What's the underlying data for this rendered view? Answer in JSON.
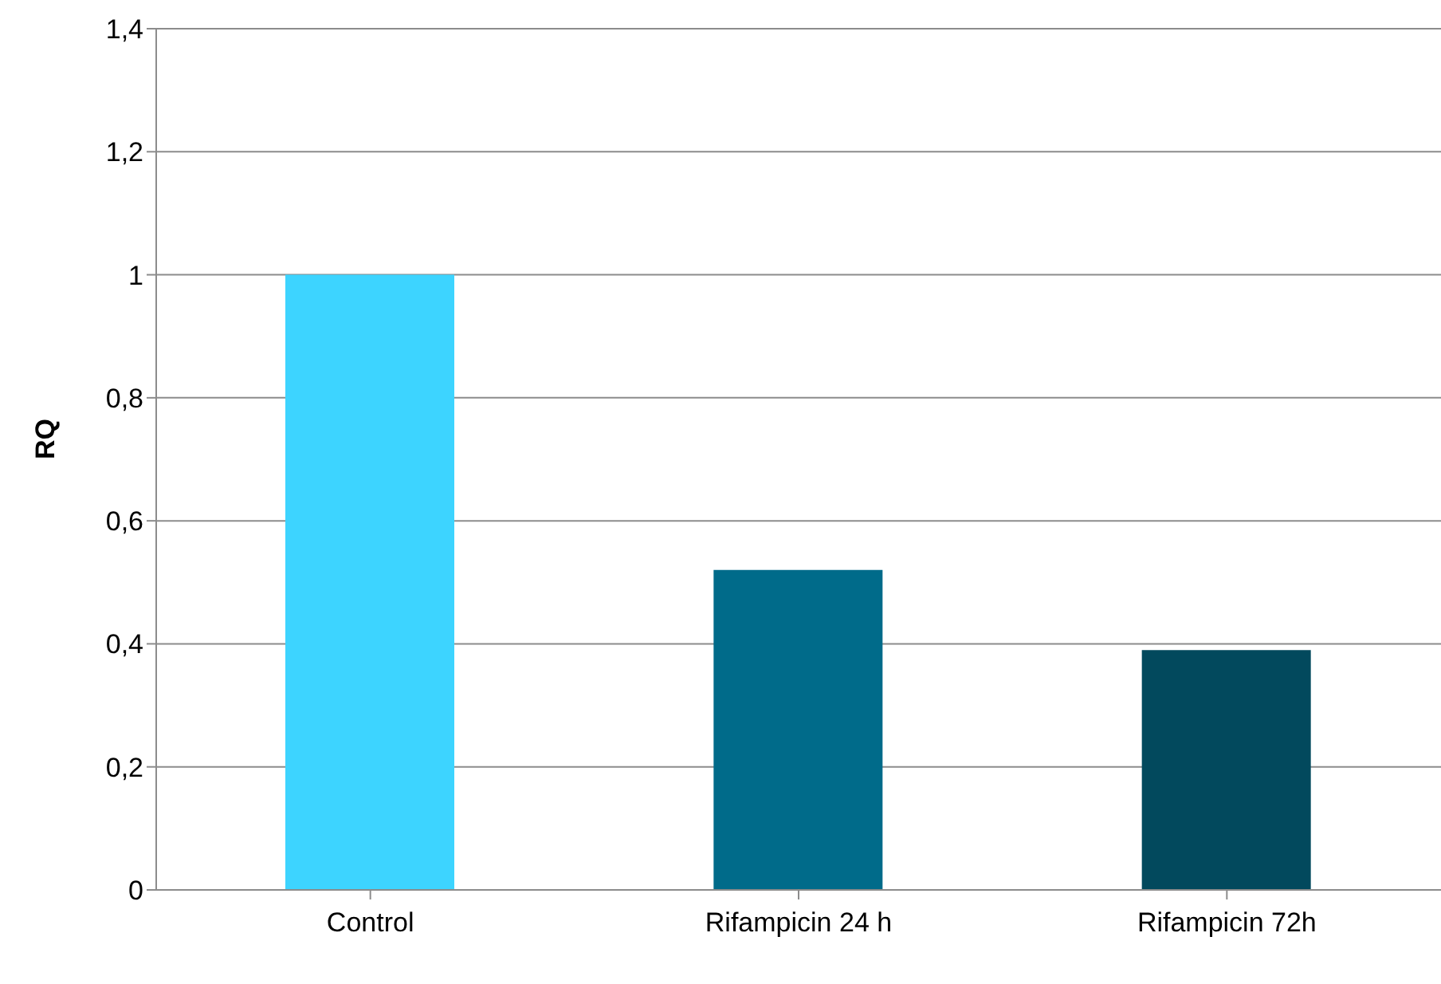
{
  "chart_data": {
    "type": "bar",
    "ylabel": "RQ",
    "categories": [
      "Control",
      "Rifampicin  24 h",
      "Rifampicin 72h"
    ],
    "values": [
      1,
      0.52,
      0.39
    ],
    "colors": [
      "#3dd4ff",
      "#006b8a",
      "#02495d"
    ],
    "ylim": [
      0,
      1.4
    ],
    "yticks": [
      {
        "value": 0,
        "label": "0"
      },
      {
        "value": 0.2,
        "label": "0,2"
      },
      {
        "value": 0.4,
        "label": "0,4"
      },
      {
        "value": 0.6,
        "label": "0,6"
      },
      {
        "value": 0.8,
        "label": "0,8"
      },
      {
        "value": 1,
        "label": "1"
      },
      {
        "value": 1.2,
        "label": "1,2"
      },
      {
        "value": 1.4,
        "label": "1,4"
      }
    ],
    "grid": "y"
  }
}
